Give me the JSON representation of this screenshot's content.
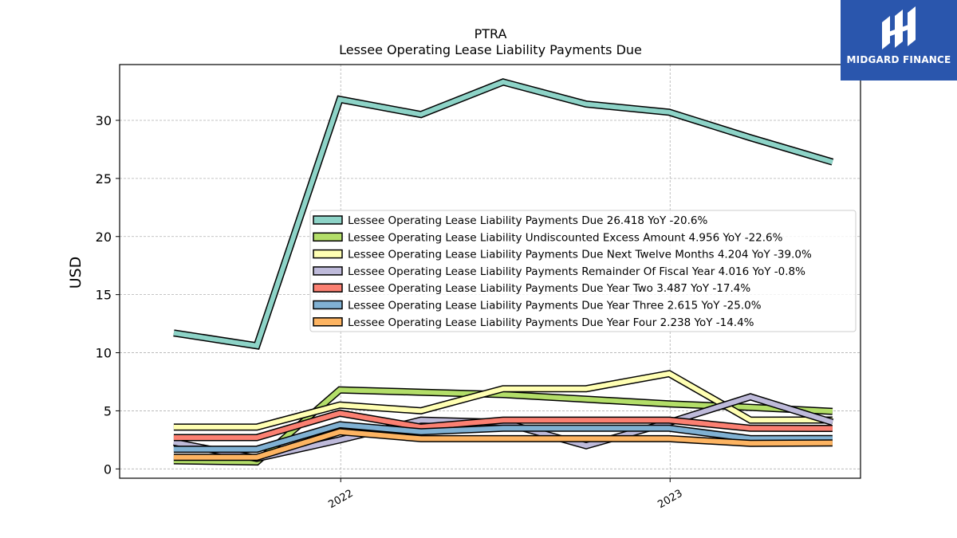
{
  "chart_data": {
    "type": "line",
    "title": "PTRA",
    "subtitle": "Lessee Operating Lease Liability Payments Due",
    "ylabel": "USD",
    "xlabel": "",
    "x": [
      "2021-06-30",
      "2021-09-30",
      "2021-12-31",
      "2022-03-31",
      "2022-06-30",
      "2022-09-30",
      "2022-12-31",
      "2023-03-31",
      "2023-06-30"
    ],
    "x_ticks": [
      {
        "date": "2022-01-01",
        "label": "2022"
      },
      {
        "date": "2023-01-01",
        "label": "2023"
      }
    ],
    "y_ticks": [
      0,
      5,
      10,
      15,
      20,
      25,
      30
    ],
    "ylim": [
      -0.8,
      34.8
    ],
    "grid": true,
    "legend_position": "center-right",
    "series": [
      {
        "name": "Lessee Operating Lease Liability Payments Due",
        "legend": "Lessee Operating Lease Liability Payments Due  26.418 YoY -20.6%",
        "color": "#8dd3c7",
        "values": [
          11.7,
          10.6,
          31.8,
          30.5,
          33.3,
          31.4,
          30.7,
          28.5,
          26.418
        ]
      },
      {
        "name": "Lessee Operating Lease Liability Undiscounted Excess Amount",
        "legend": "Lessee Operating Lease Liability Undiscounted Excess Amount  4.956 YoY -22.6%",
        "color": "#b3de69",
        "values": [
          0.7,
          0.6,
          6.8,
          6.6,
          6.4,
          6.0,
          5.6,
          5.3,
          4.956
        ]
      },
      {
        "name": "Lessee Operating Lease Liability Payments Due Next Twelve Months",
        "legend": "Lessee Operating Lease Liability Payments Due Next Twelve Months  4.204 YoY -39.0%",
        "color": "#ffffb3",
        "values": [
          3.6,
          3.6,
          5.5,
          5.0,
          6.9,
          6.9,
          8.2,
          4.2,
          4.204
        ]
      },
      {
        "name": "Lessee Operating Lease Liability Payments Remainder Of Fiscal Year",
        "legend": "Lessee Operating Lease Liability Payments Remainder Of Fiscal Year  4.016 YoY -0.8%",
        "color": "#bebada",
        "values": [
          2.3,
          0.9,
          2.5,
          4.2,
          4.0,
          2.0,
          4.0,
          6.2,
          4.016
        ]
      },
      {
        "name": "Lessee Operating Lease Liability Payments Due Year Two",
        "legend": "Lessee Operating Lease Liability Payments Due Year Two  3.487 YoY -17.4%",
        "color": "#fb8072",
        "values": [
          2.7,
          2.7,
          4.8,
          3.6,
          4.2,
          4.2,
          4.2,
          3.5,
          3.487
        ]
      },
      {
        "name": "Lessee Operating Lease Liability Payments Due Year Three",
        "legend": "Lessee Operating Lease Liability Payments Due Year Three  2.615 YoY -25.0%",
        "color": "#80b1d3",
        "values": [
          1.7,
          1.7,
          3.8,
          3.2,
          3.5,
          3.5,
          3.5,
          2.6,
          2.615
        ]
      },
      {
        "name": "Lessee Operating Lease Liability Payments Due Year Four",
        "legend": "Lessee Operating Lease Liability Payments Due Year Four  2.238 YoY -14.4%",
        "color": "#fdb462",
        "values": [
          1.0,
          1.0,
          3.2,
          2.6,
          2.6,
          2.6,
          2.6,
          2.2,
          2.238
        ]
      }
    ]
  },
  "logo": {
    "text": "MIDGARD FINANCE",
    "color": "#2a56ad"
  }
}
